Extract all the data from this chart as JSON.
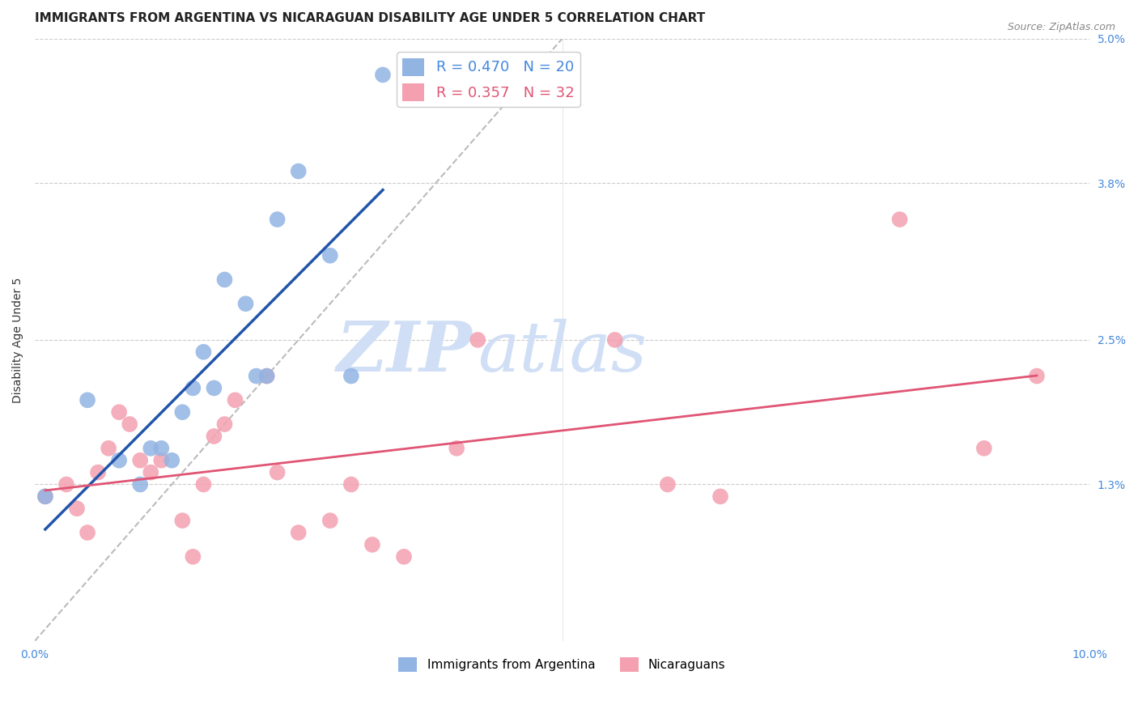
{
  "title": "IMMIGRANTS FROM ARGENTINA VS NICARAGUAN DISABILITY AGE UNDER 5 CORRELATION CHART",
  "source": "Source: ZipAtlas.com",
  "xlabel": "",
  "ylabel": "Disability Age Under 5",
  "xlim": [
    0.0,
    0.1
  ],
  "ylim": [
    0.0,
    0.05
  ],
  "xticks": [
    0.0,
    0.02,
    0.04,
    0.06,
    0.08,
    0.1
  ],
  "xticklabels": [
    "0.0%",
    "",
    "",
    "",
    "",
    "10.0%"
  ],
  "yticks_right": [
    0.013,
    0.025,
    0.038,
    0.05
  ],
  "ytick_labels_right": [
    "1.3%",
    "2.5%",
    "3.8%",
    "5.0%"
  ],
  "argentina_R": 0.47,
  "argentina_N": 20,
  "nicaragua_R": 0.357,
  "nicaragua_N": 32,
  "argentina_color": "#92b4e3",
  "nicaragua_color": "#f4a0b0",
  "argentina_line_color": "#2255aa",
  "nicaragua_line_color": "#e05575",
  "diagonal_color": "#bbbbbb",
  "argentina_x": [
    0.001,
    0.005,
    0.008,
    0.01,
    0.011,
    0.012,
    0.013,
    0.014,
    0.015,
    0.016,
    0.017,
    0.018,
    0.02,
    0.021,
    0.022,
    0.023,
    0.025,
    0.028,
    0.03,
    0.033
  ],
  "argentina_y": [
    0.012,
    0.02,
    0.015,
    0.013,
    0.016,
    0.016,
    0.015,
    0.019,
    0.021,
    0.024,
    0.021,
    0.03,
    0.028,
    0.022,
    0.022,
    0.035,
    0.039,
    0.032,
    0.022,
    0.047
  ],
  "nicaragua_x": [
    0.001,
    0.003,
    0.004,
    0.005,
    0.006,
    0.007,
    0.008,
    0.009,
    0.01,
    0.011,
    0.012,
    0.014,
    0.015,
    0.016,
    0.017,
    0.018,
    0.019,
    0.022,
    0.023,
    0.025,
    0.028,
    0.03,
    0.032,
    0.035,
    0.04,
    0.042,
    0.055,
    0.06,
    0.065,
    0.082,
    0.09,
    0.095
  ],
  "nicaragua_y": [
    0.012,
    0.013,
    0.011,
    0.009,
    0.014,
    0.016,
    0.019,
    0.018,
    0.015,
    0.014,
    0.015,
    0.01,
    0.007,
    0.013,
    0.017,
    0.018,
    0.02,
    0.022,
    0.014,
    0.009,
    0.01,
    0.013,
    0.008,
    0.007,
    0.016,
    0.025,
    0.025,
    0.013,
    0.012,
    0.035,
    0.016,
    0.022
  ],
  "background_color": "#ffffff",
  "watermark_color": "#d0dff5",
  "title_fontsize": 11,
  "axis_fontsize": 10,
  "tick_label_color": "#4488dd"
}
